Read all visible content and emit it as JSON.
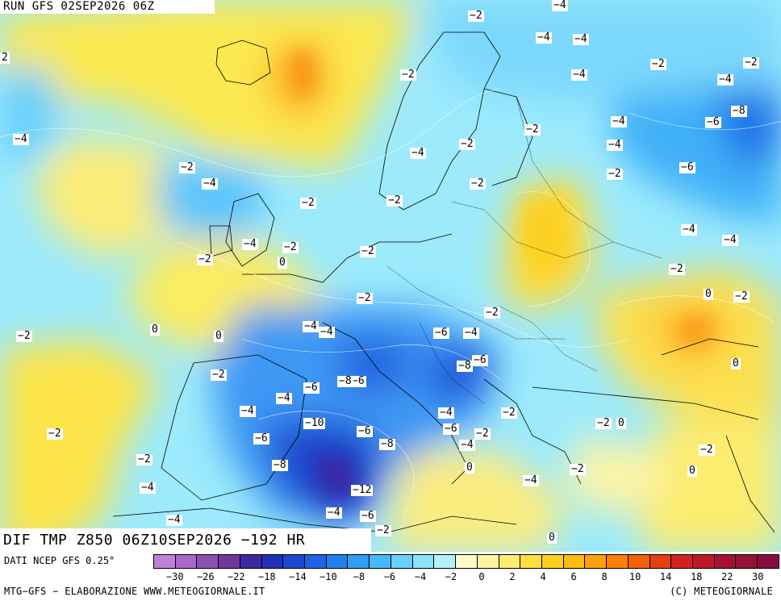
{
  "run_title": "RUN GFS 02SEP2026 06Z",
  "main_title": "DIF TMP Z850 06Z10SEP2026 −192 HR",
  "footer": {
    "data_source": "DATI NCEP GFS 0.25°",
    "credit_left": "MTG−GFS − ELABORAZIONE WWW.METEOGIORNALE.IT",
    "credit_right": "(C) METEOGIORNALE"
  },
  "colorbar": {
    "colors": [
      "#c080d8",
      "#a868c8",
      "#8c50b0",
      "#70389c",
      "#3c28a0",
      "#2030b8",
      "#1c48d0",
      "#1c64e4",
      "#2080f0",
      "#309cf8",
      "#48b8fc",
      "#68d0fc",
      "#8ce4fc",
      "#b4f0fc",
      "#fcfcc8",
      "#fcf4a0",
      "#fcec70",
      "#fce040",
      "#fcd020",
      "#fcbc10",
      "#fca010",
      "#fc8008",
      "#f46008",
      "#e44010",
      "#d42020",
      "#c01828",
      "#a81030",
      "#981038",
      "#880c40"
    ],
    "tick_labels": [
      "−30",
      "−26",
      "−22",
      "−18",
      "−14",
      "−10",
      "−8",
      "−6",
      "−4",
      "−2",
      "0",
      "2",
      "4",
      "6",
      "8",
      "10",
      "14",
      "18",
      "22",
      "30"
    ]
  },
  "contour_labels": [
    "−2",
    "−4",
    "−4",
    "−2",
    "−2",
    "−4",
    "−2",
    "−4",
    "−8",
    "−6",
    "−4",
    "−2",
    "−4",
    "−4",
    "−2",
    "−6",
    "−4",
    "−2",
    "−4",
    "−2",
    "−2",
    "−2",
    "−4",
    "−4",
    "−2",
    "−2",
    "−4",
    "−2",
    "0",
    "−2",
    "−2",
    "−2",
    "0",
    "−2",
    "−2",
    "−4",
    "−4",
    "0",
    "0",
    "−6",
    "−4",
    "−6",
    "−8",
    "−6",
    "−2",
    "−8",
    "−6",
    "0",
    "−4",
    "−6",
    "−4",
    "−2",
    "−4",
    "−6",
    "−10",
    "−6",
    "−8",
    "−6",
    "−4",
    "−2",
    "−2",
    "−2",
    "0",
    "−8",
    "−2",
    "−2",
    "0",
    "−4",
    "−4",
    "−12",
    "−4",
    "−6",
    "−2",
    "0",
    "−4",
    "−4",
    "−2",
    "0",
    "−2",
    "2"
  ],
  "colors": {
    "background": "#ffffff",
    "text": "#000000",
    "coastline": "#000000",
    "contour": "#ffffff"
  }
}
